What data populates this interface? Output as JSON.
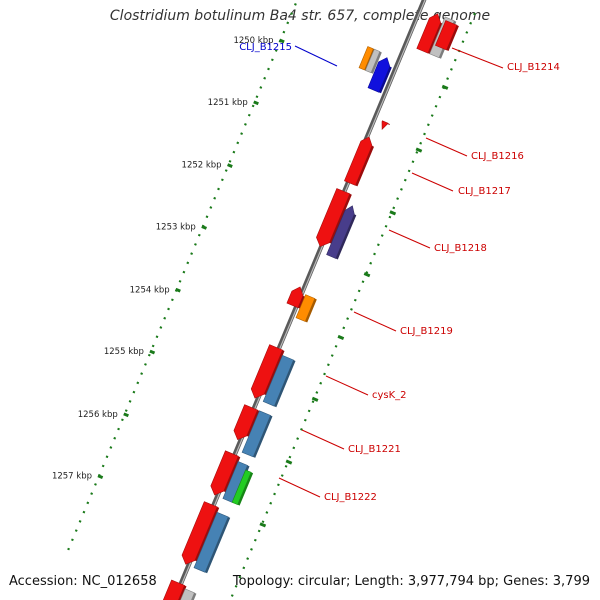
{
  "title": "Clostridium botulinum Ba4 str. 657, complete genome",
  "accession": "Accession: NC_012658",
  "summary": "Topology: circular; Length: 3,977,794 bp; Genes: 3,799",
  "colors": {
    "backbone": "#808080",
    "ticks": "#1a7a1a",
    "cds": "#ee1111",
    "ncrna": "#c0c0c0",
    "blue": "#1010dd",
    "steelblue": "#4682b4",
    "orange": "#ff8c00",
    "purple": "#483d8b",
    "green": "#22cc22",
    "label_default": "#cc0000",
    "label_highlight": "#0000cc"
  },
  "scale_labels": [
    "1250 kbp",
    "1251 kbp",
    "1252 kbp",
    "1253 kbp",
    "1254 kbp",
    "1255 kbp",
    "1256 kbp",
    "1257 kbp"
  ],
  "gene_labels": [
    {
      "text": "CLJ_B1215",
      "highlight": true
    },
    {
      "text": "CLJ_B1214",
      "highlight": false
    },
    {
      "text": "CLJ_B1216",
      "highlight": false
    },
    {
      "text": "CLJ_B1217",
      "highlight": false
    },
    {
      "text": "CLJ_B1218",
      "highlight": false
    },
    {
      "text": "CLJ_B1219",
      "highlight": false
    },
    {
      "text": "cysK_2",
      "highlight": false
    },
    {
      "text": "CLJ_B1221",
      "highlight": false
    },
    {
      "text": "CLJ_B1222",
      "highlight": false
    }
  ]
}
